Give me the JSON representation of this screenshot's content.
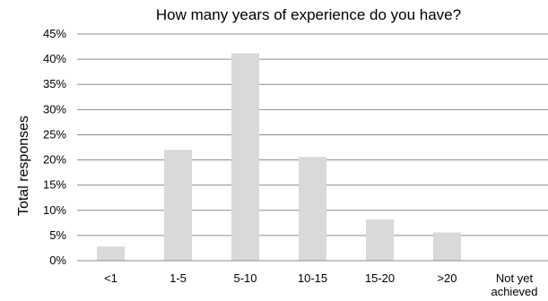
{
  "chart_data": {
    "type": "bar",
    "title": "How many years of experience do you have?",
    "xlabel": "",
    "ylabel": "Total responses",
    "categories": [
      "<1",
      "1-5",
      "5-10",
      "10-15",
      "15-20",
      ">20",
      "Not yet achieved"
    ],
    "values": [
      2.8,
      22.0,
      41.2,
      20.6,
      8.2,
      5.6,
      0
    ],
    "yticks": [
      "0%",
      "5%",
      "10%",
      "15%",
      "20%",
      "25%",
      "30%",
      "35%",
      "40%",
      "45%"
    ],
    "ylim": [
      0,
      45
    ],
    "grid": true,
    "bar_color": "#d9d9d9",
    "legend": "none"
  }
}
